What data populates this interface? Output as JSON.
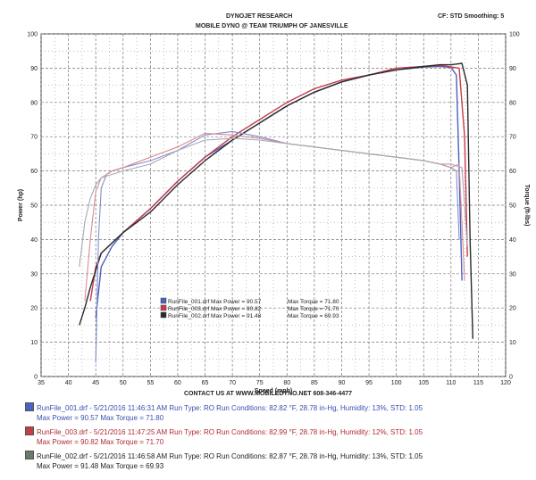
{
  "header": {
    "company": "DYNOJET RESEARCH",
    "subtitle": "MOBILE DYNO @ TEAM TRIUMPH OF JANESVILLE",
    "settings": "CF: STD  Smoothing: 5"
  },
  "footer": {
    "contact": "CONTACT US AT WWW.MOBILEDYNO.NET 608-346-4477"
  },
  "legend": [
    {
      "line1": "RunFile_001.drf - 5/21/2016 11:46:31 AM  Run Type: RO  Run Conditions: 82.82 °F, 28.78 in-Hg,  Humidity:  13%, STD: 1.05",
      "line2": "Max Power = 90.57  Max Torque = 71.80",
      "color": "#4a62c0"
    },
    {
      "line1": "RunFile_003.drf - 5/21/2016 11:47:25 AM  Run Type: RO  Run Conditions: 82.99 °F, 28.78 in-Hg,  Humidity:  12%, STD: 1.05",
      "line2": "Max Power = 90.82  Max Torque = 71.70",
      "color": "#c83c4a"
    },
    {
      "line1": "RunFile_002.drf - 5/21/2016 11:46:58 AM  Run Type: RO  Run Conditions: 82.87 °F, 28.78 in-Hg,  Humidity:  13%, STD: 1.05",
      "line2": "Max Power = 91.48  Max Torque = 69.93",
      "color": "#2a2a2a"
    }
  ],
  "chart_data": {
    "type": "line",
    "xlabel": "Speed (mph)",
    "ylabel": "Power (hp)",
    "y2label": "Torque (ft-lbs)",
    "xlim": [
      35,
      120
    ],
    "ylim": [
      0,
      100
    ],
    "y2lim": [
      0,
      100
    ],
    "xticks": [
      35,
      40,
      45,
      50,
      55,
      60,
      65,
      70,
      75,
      80,
      85,
      90,
      95,
      100,
      105,
      110,
      115,
      120
    ],
    "yticks": [
      0,
      10,
      20,
      30,
      40,
      50,
      60,
      70,
      80,
      90,
      100
    ],
    "grid": true,
    "inset_legend": [
      {
        "name": "RunFile_001.drf Max Power = 90.57",
        "torque": "Max Torque = 71.80",
        "color": "#4a62c0"
      },
      {
        "name": "RunFile_003.drf Max Power = 90.82",
        "torque": "Max Torque = 71.70",
        "color": "#c83c4a"
      },
      {
        "name": "RunFile_002.drf Max Power = 91.48",
        "torque": "Max Torque = 69.93",
        "color": "#2a2a2a"
      }
    ],
    "series": [
      {
        "name": "RunFile_001.drf",
        "kind": "power",
        "color": "#4a62c0",
        "x": [
          45,
          46,
          48,
          50,
          55,
          60,
          65,
          70,
          75,
          80,
          85,
          90,
          95,
          100,
          105,
          108,
          110,
          111,
          111.5,
          112
        ],
        "y": [
          17,
          32,
          38,
          42,
          49,
          57,
          64,
          69,
          74,
          79,
          83,
          86,
          88,
          89.5,
          90.3,
          90.5,
          90.2,
          88,
          60,
          28
        ]
      },
      {
        "name": "RunFile_003.drf",
        "kind": "power",
        "color": "#c83c4a",
        "x": [
          44,
          45,
          46,
          48,
          50,
          55,
          60,
          65,
          70,
          75,
          80,
          85,
          90,
          95,
          100,
          105,
          108,
          110,
          111.5,
          112.5,
          113
        ],
        "y": [
          22,
          32,
          36,
          39,
          42,
          49,
          57,
          64,
          70,
          75,
          80,
          84,
          86.5,
          88,
          90,
          90.5,
          90.8,
          90.4,
          90,
          70,
          35
        ]
      },
      {
        "name": "RunFile_002.drf",
        "kind": "power",
        "color": "#2a2a2a",
        "x": [
          42,
          43,
          44,
          45,
          46,
          48,
          50,
          55,
          60,
          65,
          70,
          75,
          80,
          85,
          90,
          95,
          100,
          105,
          108,
          110,
          112,
          113,
          113.5,
          114
        ],
        "y": [
          15,
          20,
          26,
          31,
          36,
          39,
          42,
          48,
          56,
          63,
          69,
          74,
          79,
          83,
          86,
          88,
          89.5,
          90.5,
          91,
          91,
          91.4,
          85,
          40,
          11
        ]
      },
      {
        "name": "RunFile_001.drf",
        "kind": "torque",
        "color": "#7f8fce",
        "x": [
          45,
          45.5,
          46,
          47,
          48,
          50,
          55,
          60,
          65,
          70,
          75,
          80,
          85,
          90,
          95,
          100,
          105,
          108,
          110,
          111,
          111.5
        ],
        "y": [
          4,
          40,
          55,
          59,
          60,
          61,
          63,
          66,
          70.5,
          71.5,
          70,
          68,
          67,
          66,
          65,
          64,
          63,
          62,
          61,
          60,
          40
        ]
      },
      {
        "name": "RunFile_003.drf",
        "kind": "torque",
        "color": "#d88c94",
        "x": [
          43,
          44,
          45,
          46,
          48,
          50,
          55,
          60,
          65,
          70,
          75,
          80,
          85,
          90,
          95,
          100,
          105,
          108,
          110,
          111.5,
          112.5
        ],
        "y": [
          22,
          40,
          54,
          58,
          60,
          61,
          64,
          67,
          71,
          70.5,
          69.5,
          68,
          67,
          66,
          65,
          64,
          63,
          62,
          61,
          62,
          28
        ]
      },
      {
        "name": "RunFile_002.drf",
        "kind": "torque",
        "color": "#a8a8b4",
        "x": [
          42,
          43,
          44,
          45,
          46,
          48,
          50,
          55,
          60,
          65,
          70,
          75,
          80,
          85,
          90,
          95,
          100,
          105,
          108,
          110,
          112,
          113
        ],
        "y": [
          32,
          45,
          52,
          56,
          58,
          59,
          60,
          62,
          66,
          69,
          69.5,
          69,
          68,
          67,
          66,
          65,
          64,
          63,
          62,
          62,
          61,
          38
        ]
      }
    ]
  }
}
